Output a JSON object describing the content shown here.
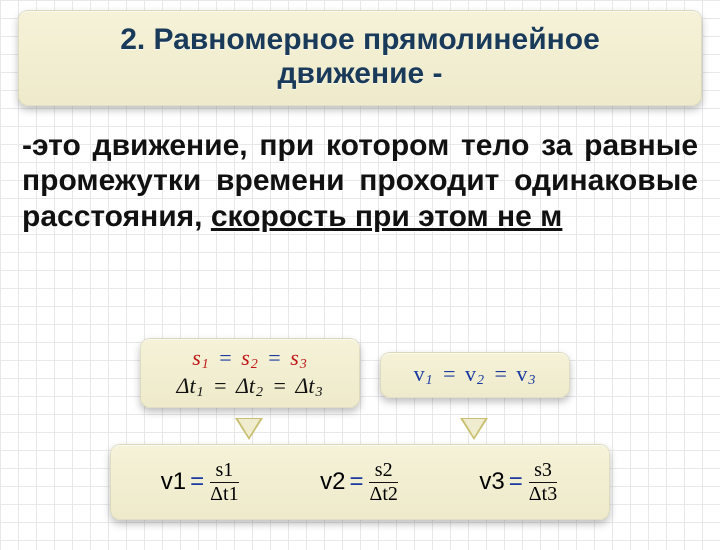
{
  "header": {
    "line1": "2. Равномерное прямолинейное",
    "line2": "движение -"
  },
  "definition": {
    "prefix": "-",
    "plain": "это движение, при котором тело за равные промежутки времени проходит одинаковые расстояния, ",
    "underlined": "скорость при этом не м"
  },
  "styles": {
    "header_bg_top": "#f5f2d8",
    "header_bg_bottom": "#e5e0b8",
    "header_text_color": "#1a3a5a",
    "panel_bg_top": "#f5f2d8",
    "panel_bg_bottom": "#eeeacb",
    "grid_color": "#e8e8e8",
    "s_color": "#c01818",
    "v_color": "#1a3aa0",
    "text_color": "#111111",
    "header_fontsize": 30,
    "definition_fontsize": 30,
    "eq_fontsize": 22
  },
  "box_left": {
    "s_line": {
      "var": "s",
      "indices": [
        "1",
        "2",
        "3"
      ],
      "sep": "="
    },
    "t_line": {
      "var": "Δt",
      "indices": [
        "1",
        "2",
        "3"
      ],
      "sep": "="
    }
  },
  "box_right": {
    "v_line": {
      "var": "v",
      "indices": [
        "1",
        "2",
        "3"
      ],
      "sep": "="
    }
  },
  "box_bottom": {
    "eqs": [
      {
        "v_index": "1",
        "s_index": "1",
        "t_index": "1"
      },
      {
        "v_index": "2",
        "s_index": "2",
        "t_index": "2"
      },
      {
        "v_index": "3",
        "s_index": "3",
        "t_index": "3"
      }
    ]
  }
}
